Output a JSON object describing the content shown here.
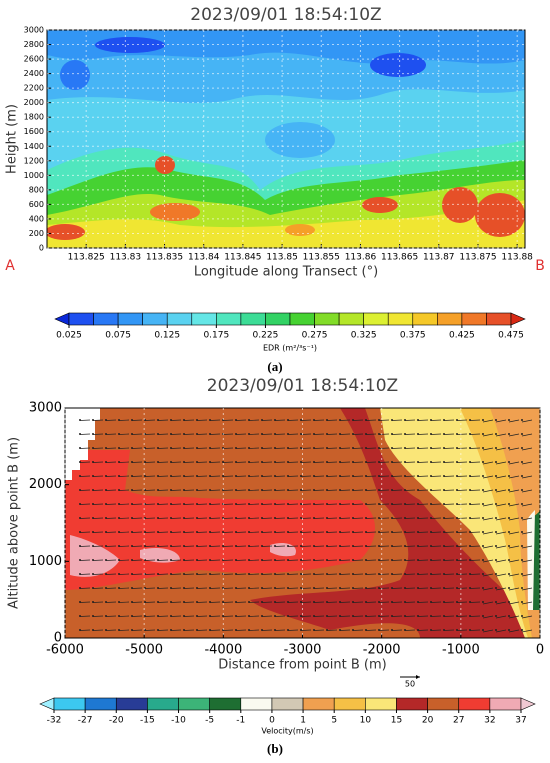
{
  "chart_data": [
    {
      "type": "contour",
      "title": "2023/09/01  18:54:10Z",
      "xlabel": "Longitude along Transect (°)",
      "ylabel": "Height (m)",
      "xlim": [
        113.82,
        113.881
      ],
      "xticks": [
        113.825,
        113.83,
        113.835,
        113.84,
        113.845,
        113.85,
        113.855,
        113.86,
        113.865,
        113.87,
        113.875,
        113.88
      ],
      "ylim": [
        0,
        3000
      ],
      "yticks": [
        0,
        200,
        400,
        600,
        800,
        1000,
        1200,
        1400,
        1600,
        1800,
        2000,
        2200,
        2400,
        2600,
        2800,
        3000
      ],
      "annotations": [
        "A",
        "B"
      ],
      "panel_label": "(a)",
      "colorbar": {
        "label": "EDR (m²/³s⁻¹)",
        "ticks": [
          0.025,
          0.075,
          0.125,
          0.175,
          0.225,
          0.275,
          0.325,
          0.375,
          0.425,
          0.475
        ],
        "colors": [
          "#0a28d8",
          "#1e50f0",
          "#2878f5",
          "#3296f5",
          "#46b4f5",
          "#5ad2f0",
          "#64e6e6",
          "#50e6be",
          "#3cdc96",
          "#32d264",
          "#46d232",
          "#82dc28",
          "#b4e628",
          "#dcf032",
          "#f0e632",
          "#f5c828",
          "#f5a028",
          "#f07828",
          "#e65028",
          "#d72814"
        ]
      }
    },
    {
      "type": "contour",
      "title": "2023/09/01  18:54:10Z",
      "xlabel": "Distance from point B  (m)",
      "ylabel": "Altitude above point B  (m)",
      "xlim": [
        -6000,
        0
      ],
      "xticks": [
        -6000,
        -5000,
        -4000,
        -3000,
        -2000,
        -1000,
        0
      ],
      "ylim": [
        0,
        3000
      ],
      "yticks": [
        0,
        1000,
        2000,
        3000
      ],
      "reference_vector": "50",
      "panel_label": "(b)",
      "colorbar": {
        "label": "Velocity(m/s)",
        "ticks": [
          -32,
          -27,
          -20,
          -15,
          -10,
          -5,
          -1,
          0,
          1,
          5,
          10,
          15,
          20,
          27,
          32,
          37
        ],
        "colors": [
          "#a0f0ff",
          "#3cc8f0",
          "#1e78d2",
          "#283c96",
          "#28aa8c",
          "#3cb478",
          "#1e6e32",
          "#fafaf0",
          "#d2c8b4",
          "#f0a050",
          "#f5c046",
          "#fae678",
          "#b42828",
          "#c8602a",
          "#f03c32",
          "#f0aab4",
          "#f0c8d2"
        ]
      }
    }
  ]
}
